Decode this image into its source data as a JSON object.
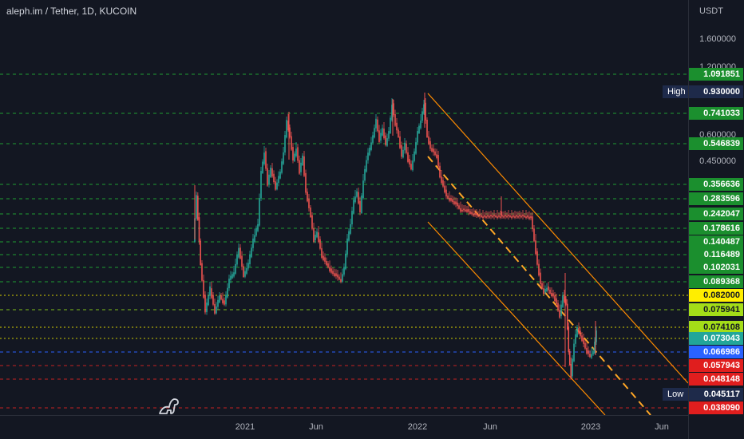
{
  "header": {
    "symbol_title": "aleph.im / Tether, 1D, KUCOIN"
  },
  "price_axis": {
    "unit": "USDT",
    "ticks": [
      "1.600000",
      "1.200000",
      "0.600000",
      "0.450000"
    ]
  },
  "time_axis": {
    "labels": [
      "2021",
      "Jun",
      "2022",
      "Jun",
      "2023",
      "Jun"
    ]
  },
  "markers": {
    "high_label": "High",
    "high_value": "0.930000",
    "low_label": "Low",
    "low_value": "0.045117"
  },
  "levels": [
    {
      "value": "1.091851",
      "bg": "#1b8f2e",
      "fg": "#ffffff",
      "line": "#1f9c33",
      "style": "dash"
    },
    {
      "value": "0.741033",
      "bg": "#1b8f2e",
      "fg": "#ffffff",
      "line": "#1f9c33",
      "style": "dash"
    },
    {
      "value": "0.546839",
      "bg": "#1b8f2e",
      "fg": "#ffffff",
      "line": "#1f9c33",
      "style": "dash"
    },
    {
      "value": "0.356636",
      "bg": "#1b8f2e",
      "fg": "#ffffff",
      "line": "#1f9c33",
      "style": "dash"
    },
    {
      "value": "0.283596",
      "bg": "#1b8f2e",
      "fg": "#ffffff",
      "line": "#1f9c33",
      "style": "dash"
    },
    {
      "value": "0.242047",
      "bg": "#1b8f2e",
      "fg": "#ffffff",
      "line": "#1f9c33",
      "style": "dash"
    },
    {
      "value": "0.178616",
      "bg": "#1b8f2e",
      "fg": "#ffffff",
      "line": "#1f9c33",
      "style": "dash"
    },
    {
      "value": "0.140487",
      "bg": "#1b8f2e",
      "fg": "#ffffff",
      "line": "#1f9c33",
      "style": "dash"
    },
    {
      "value": "0.116489",
      "bg": "#1b8f2e",
      "fg": "#ffffff",
      "line": "#1f9c33",
      "style": "dash"
    },
    {
      "value": "0.102031",
      "bg": "#1b8f2e",
      "fg": "#ffffff",
      "line": "#1f9c33",
      "style": "dash"
    },
    {
      "value": "0.089368",
      "bg": "#1b8f2e",
      "fg": "#ffffff",
      "line": "#1f9c33",
      "style": "dash"
    },
    {
      "value": "0.082000",
      "bg": "#ffee00",
      "fg": "#131722",
      "line": "#d8d000",
      "style": "dot"
    },
    {
      "value": "0.075941",
      "bg": "#a4dd18",
      "fg": "#131722",
      "line": "#7fbf1a",
      "style": "dash"
    },
    {
      "value": "0.074108",
      "bg": "#a4dd18",
      "fg": "#131722",
      "line": "#d8d000",
      "style": "dot"
    },
    {
      "value": "0.073043",
      "bg": "#22a699",
      "fg": "#ffffff",
      "line": "#c8c800",
      "style": "dot"
    },
    {
      "value": "0.066986",
      "bg": "#2962ff",
      "fg": "#ffffff",
      "line": "#2962ff",
      "style": "dash"
    },
    {
      "value": "0.057943",
      "bg": "#e01e1e",
      "fg": "#ffffff",
      "line": "#c42222",
      "style": "dash"
    },
    {
      "value": "0.048148",
      "bg": "#e01e1e",
      "fg": "#ffffff",
      "line": "#c42222",
      "style": "dash"
    },
    {
      "value": "0.038090",
      "bg": "#e01e1e",
      "fg": "#ffffff",
      "line": "#c42222",
      "style": "dash"
    }
  ],
  "colors": {
    "background": "#131722",
    "up_candle": "#26a69a",
    "down_candle": "#ef5350",
    "channel": "#ff8c00",
    "midline": "#ffa726"
  },
  "icons": {
    "logo": "dinosaur-logo-icon"
  }
}
